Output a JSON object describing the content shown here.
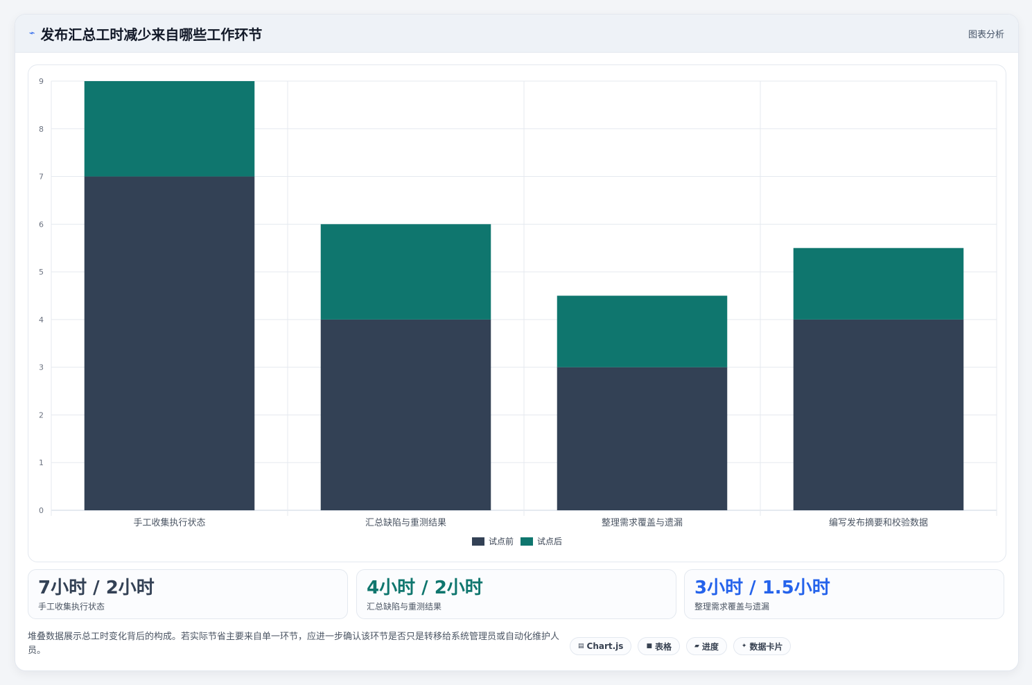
{
  "header": {
    "title": "发布汇总工时减少来自哪些工作环节",
    "action_label": "图表分析",
    "icon": "trend-icon"
  },
  "chart_data": {
    "type": "bar",
    "stacked": true,
    "categories": [
      "手工收集执行状态",
      "汇总缺陷与重测结果",
      "整理需求覆盖与遗漏",
      "编写发布摘要和校验数据"
    ],
    "series": [
      {
        "name": "试点前",
        "values": [
          7,
          4,
          3,
          4
        ],
        "color": "#334155"
      },
      {
        "name": "试点后",
        "values": [
          2,
          2,
          1.5,
          1.5
        ],
        "color": "#0f766e"
      }
    ],
    "ylim": [
      0,
      9
    ],
    "yticks": [
      "0",
      "1",
      "2",
      "3",
      "4",
      "5",
      "6",
      "7",
      "8",
      "9"
    ],
    "grid": true,
    "legend_position": "bottom"
  },
  "stats": [
    {
      "value": "7小时 / 2小时",
      "label": "手工收集执行状态",
      "color": "#334155"
    },
    {
      "value": "4小时 / 2小时",
      "label": "汇总缺陷与重测结果",
      "color": "#0f766e"
    },
    {
      "value": "3小时 / 1.5小时",
      "label": "整理需求覆盖与遗漏",
      "color": "#2563eb"
    }
  ],
  "note": "堆叠数据展示总工时变化背后的构成。若实际节省主要来自单一环节，应进一步确认该环节是否只是转移给系统管理员或自动化维护人员。",
  "tags": [
    {
      "icon": "▤",
      "label": "Chart.js"
    },
    {
      "icon": "■",
      "label": "表格"
    },
    {
      "icon": "▰",
      "label": "进度"
    },
    {
      "icon": "✦",
      "label": "数据卡片"
    }
  ]
}
